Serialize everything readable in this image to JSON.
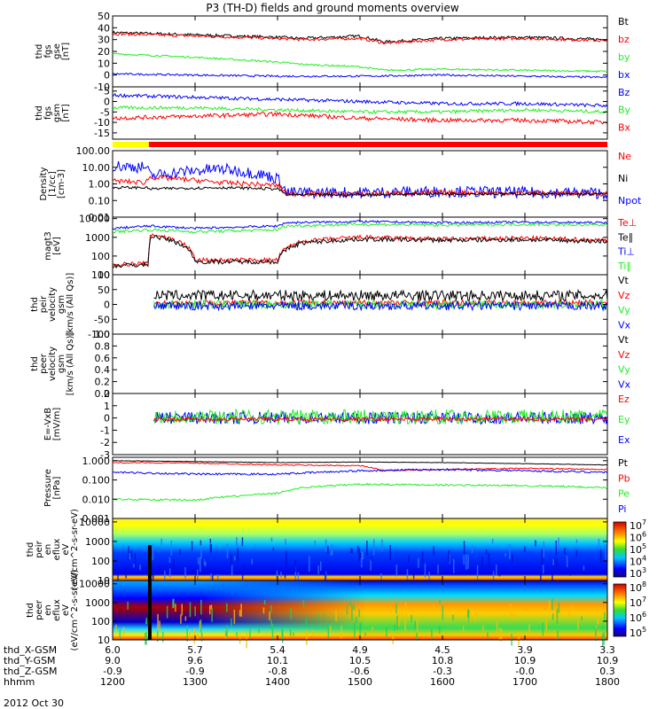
{
  "title": "P3 (TH-D) fields and ground moments overview",
  "date_label": "2012 Oct 30",
  "colors": {
    "black": "#000000",
    "red": "#ff0000",
    "green": "#22ee22",
    "blue": "#0000ff",
    "yellow": "#ffff00",
    "orange": "#ff8800"
  },
  "status_bar": {
    "segments": [
      {
        "from_hhmm": 1200,
        "to_hhmm": 1244,
        "color": "#ffff00"
      },
      {
        "from_hhmm": 1244,
        "to_hhmm": 1800,
        "color": "#ff0000"
      }
    ]
  },
  "orbit_table": {
    "row_labels": [
      "thd_X-GSM",
      "thd_Y-GSM",
      "thd_Z-GSM",
      "hhmm"
    ],
    "columns": [
      [
        "6.0",
        "9.0",
        "-0.9",
        "1200"
      ],
      [
        "5.7",
        "9.6",
        "-0.9",
        "1300"
      ],
      [
        "5.4",
        "10.1",
        "-0.8",
        "1400"
      ],
      [
        "4.9",
        "10.5",
        "-0.6",
        "1500"
      ],
      [
        "4.5",
        "10.8",
        "-0.3",
        "1600"
      ],
      [
        "3.9",
        "10.9",
        "-0.0",
        "1700"
      ],
      [
        "3.3",
        "10.9",
        "0.3",
        "1800"
      ]
    ]
  },
  "chart_data": [
    {
      "type": "line",
      "ylabel": [
        "thd",
        "fgs",
        "gse",
        "[nT]"
      ],
      "ylim": [
        -10,
        50
      ],
      "yticks": [
        "-10",
        "0",
        "10",
        "20",
        "30",
        "40",
        "50"
      ],
      "legend": [
        "Bt",
        "bz",
        "by",
        "bx"
      ],
      "series": [
        {
          "name": "Bt",
          "color": "#000000",
          "x": [
            1200,
            1300,
            1400,
            1430,
            1500,
            1530,
            1600,
            1700,
            1800
          ],
          "values": [
            36,
            34,
            32,
            31,
            33,
            28,
            31,
            32,
            30
          ]
        },
        {
          "name": "bz",
          "color": "#ff0000",
          "x": [
            1200,
            1300,
            1400,
            1430,
            1500,
            1530,
            1600,
            1700,
            1800
          ],
          "values": [
            35,
            33,
            31,
            30,
            31,
            27,
            30,
            31,
            29
          ]
        },
        {
          "name": "by",
          "color": "#22ee22",
          "x": [
            1200,
            1300,
            1400,
            1430,
            1500,
            1530,
            1600,
            1700,
            1800
          ],
          "values": [
            18,
            15,
            11,
            9,
            7,
            4,
            5,
            4,
            3
          ]
        },
        {
          "name": "bx",
          "color": "#0000ff",
          "x": [
            1200,
            1300,
            1400,
            1500,
            1600,
            1700,
            1800
          ],
          "values": [
            1,
            0,
            -1,
            -1,
            0,
            -1,
            -2
          ]
        }
      ]
    },
    {
      "type": "line",
      "ylabel": [
        "thd",
        "fgs",
        "gsm",
        "[nT]"
      ],
      "ylim": [
        -18,
        7
      ],
      "yticks": [
        "-15",
        "-10",
        "-5",
        "0",
        "5"
      ],
      "legend": [
        "Bz",
        "By",
        "Bx"
      ],
      "series": [
        {
          "name": "Bz",
          "color": "#0000ff",
          "x": [
            1200,
            1300,
            1400,
            1500,
            1600,
            1700,
            1800
          ],
          "values": [
            3,
            2,
            1,
            0,
            -1,
            -1,
            -2
          ]
        },
        {
          "name": "By",
          "color": "#22ee22",
          "x": [
            1200,
            1300,
            1400,
            1500,
            1600,
            1700,
            1800
          ],
          "values": [
            -3,
            -3,
            -4,
            -5,
            -5,
            -4,
            -5
          ]
        },
        {
          "name": "Bx",
          "color": "#ff0000",
          "x": [
            1200,
            1300,
            1400,
            1500,
            1600,
            1700,
            1800
          ],
          "values": [
            -8,
            -7,
            -6,
            -8,
            -9,
            -9,
            -10
          ]
        }
      ]
    },
    {
      "type": "line",
      "ylabel": [
        "Density",
        "[1/cc]",
        "[cm-3]"
      ],
      "yscale": "log",
      "ylim": [
        0.01,
        100
      ],
      "yticks": [
        "0.01",
        "0.10",
        "1.00",
        "10.00",
        "100.00"
      ],
      "legend": [
        "Ne",
        "Ni",
        "Npot"
      ],
      "series": [
        {
          "name": "Npot",
          "color": "#0000ff",
          "x": [
            1200,
            1240,
            1245,
            1330,
            1400,
            1410,
            1500,
            1600,
            1700,
            1800
          ],
          "values": [
            12,
            10,
            3,
            8,
            2,
            0.3,
            0.3,
            0.35,
            0.3,
            0.28
          ]
        },
        {
          "name": "Ne",
          "color": "#ff0000",
          "x": [
            1200,
            1240,
            1245,
            1330,
            1400,
            1410,
            1500,
            1600,
            1700,
            1800
          ],
          "values": [
            1.5,
            1.2,
            2.5,
            1.2,
            0.8,
            0.25,
            0.25,
            0.3,
            0.28,
            0.26
          ]
        },
        {
          "name": "Ni",
          "color": "#000000",
          "x": [
            1200,
            1240,
            1245,
            1330,
            1400,
            1410,
            1500,
            1600,
            1700,
            1800
          ],
          "values": [
            0.6,
            0.6,
            0.5,
            0.6,
            0.5,
            0.22,
            0.22,
            0.26,
            0.25,
            0.24
          ]
        }
      ]
    },
    {
      "type": "line",
      "ylabel": [
        "magt3",
        "[eV]"
      ],
      "yscale": "log",
      "ylim": [
        10,
        12000
      ],
      "yticks": [
        "10",
        "100",
        "1000",
        "10000"
      ],
      "legend": [
        "Te⊥",
        "Te∥",
        "Ti⊥",
        "Ti∥"
      ],
      "series": [
        {
          "name": "Ti⊥",
          "color": "#0000ff",
          "x": [
            1200,
            1245,
            1300,
            1400,
            1410,
            1500,
            1600,
            1700,
            1800
          ],
          "values": [
            3000,
            4000,
            3000,
            4000,
            6000,
            7000,
            6000,
            6500,
            6000
          ]
        },
        {
          "name": "Ti∥",
          "color": "#22ee22",
          "x": [
            1200,
            1245,
            1300,
            1400,
            1410,
            1500,
            1600,
            1700,
            1800
          ],
          "values": [
            2000,
            2500,
            2000,
            2500,
            4000,
            5000,
            4500,
            5000,
            4500
          ]
        },
        {
          "name": "Te⊥",
          "color": "#ff0000",
          "x": [
            1200,
            1244,
            1246,
            1300,
            1400,
            1430,
            1500,
            1600,
            1700,
            1800
          ],
          "values": [
            35,
            40,
            1500,
            60,
            60,
            600,
            1000,
            800,
            900,
            700
          ]
        },
        {
          "name": "Te∥",
          "color": "#000000",
          "x": [
            1200,
            1244,
            1246,
            1300,
            1400,
            1430,
            1500,
            1600,
            1700,
            1800
          ],
          "values": [
            30,
            35,
            1200,
            50,
            50,
            500,
            800,
            700,
            750,
            600
          ]
        }
      ]
    },
    {
      "type": "line",
      "ylabel": [
        "thd",
        "peir",
        "velocity",
        "gsm",
        "[km/s (All Qs)]"
      ],
      "ylim": [
        -100,
        100
      ],
      "yticks": [
        "-100",
        "-50",
        "0",
        "50",
        "100"
      ],
      "legend": [
        "Vt",
        "Vz",
        "Vy",
        "Vx"
      ],
      "x_start": 1250,
      "series": [
        {
          "name": "Vt",
          "color": "#000000",
          "x": [
            1250,
            1800
          ],
          "values": [
            30,
            30
          ]
        },
        {
          "name": "Vz",
          "color": "#ff0000",
          "x": [
            1250,
            1800
          ],
          "values": [
            5,
            5
          ]
        },
        {
          "name": "Vy",
          "color": "#22ee22",
          "x": [
            1250,
            1800
          ],
          "values": [
            0,
            0
          ]
        },
        {
          "name": "Vx",
          "color": "#0000ff",
          "x": [
            1250,
            1800
          ],
          "values": [
            -5,
            -5
          ]
        }
      ]
    },
    {
      "type": "line",
      "ylabel": [
        "thd",
        "peer",
        "velocity",
        "gsm",
        "[km/s (All Qs)]"
      ],
      "ylim": [
        0,
        1
      ],
      "yticks": [
        "0.0",
        "0.2",
        "0.4",
        "0.6",
        "0.8",
        "1.0"
      ],
      "legend": [
        "Vt",
        "Vz",
        "Vy",
        "Vx"
      ],
      "series": []
    },
    {
      "type": "line",
      "ylabel": [
        "E=-VxB",
        "[mV/m]"
      ],
      "ylim": [
        -3,
        2
      ],
      "yticks": [
        "-3",
        "-2",
        "-1",
        "0",
        "1",
        "2"
      ],
      "legend": [
        "Ez",
        "Ey",
        "Ex"
      ],
      "x_start": 1250,
      "series": [
        {
          "name": "Ex",
          "color": "#0000ff",
          "x": [
            1250,
            1800
          ],
          "values": [
            0,
            0
          ]
        },
        {
          "name": "Ey",
          "color": "#22ee22",
          "x": [
            1250,
            1800
          ],
          "values": [
            0.1,
            0.1
          ]
        },
        {
          "name": "Ez",
          "color": "#ff0000",
          "x": [
            1250,
            1800
          ],
          "values": [
            -0.1,
            -0.1
          ]
        }
      ]
    },
    {
      "type": "line",
      "ylabel": [
        "Pressure",
        "[nPa]"
      ],
      "yscale": "log",
      "ylim": [
        0.001,
        1.5
      ],
      "yticks": [
        "0.001",
        "0.010",
        "0.100",
        "1.000"
      ],
      "legend": [
        "Pt",
        "Pb",
        "Pe",
        "Pi"
      ],
      "series": [
        {
          "name": "Pt",
          "color": "#000000",
          "x": [
            1200,
            1300,
            1400,
            1500,
            1600,
            1700,
            1800
          ],
          "values": [
            1.0,
            0.9,
            0.8,
            0.85,
            0.8,
            0.7,
            0.6
          ]
        },
        {
          "name": "Pb",
          "color": "#ff0000",
          "x": [
            1200,
            1300,
            1400,
            1500,
            1530,
            1600,
            1700,
            1800
          ],
          "values": [
            0.8,
            0.75,
            0.6,
            0.55,
            0.3,
            0.35,
            0.4,
            0.35
          ]
        },
        {
          "name": "Pi",
          "color": "#0000ff",
          "x": [
            1200,
            1300,
            1400,
            1500,
            1600,
            1700,
            1800
          ],
          "values": [
            0.25,
            0.2,
            0.2,
            0.3,
            0.35,
            0.3,
            0.25
          ]
        },
        {
          "name": "Pe",
          "color": "#22ee22",
          "x": [
            1200,
            1300,
            1400,
            1430,
            1500,
            1600,
            1700,
            1800
          ],
          "values": [
            0.01,
            0.009,
            0.02,
            0.04,
            0.06,
            0.055,
            0.05,
            0.04
          ]
        }
      ]
    },
    {
      "type": "heatmap",
      "ylabel": [
        "thd",
        "peir",
        "en",
        "eflux",
        "eV",
        "(eV/cm^2-s-sr-eV)"
      ],
      "yscale": "log",
      "ylim": [
        10,
        15000
      ],
      "yticks": [
        "10",
        "100",
        "1000",
        "10000"
      ],
      "colorbar_labels": [
        "10^3",
        "10^4",
        "10^5",
        "10^6",
        "10^7"
      ]
    },
    {
      "type": "heatmap",
      "ylabel": [
        "thd",
        "peer",
        "en",
        "eflux",
        "eV",
        "(eV/cm^2-s-sr-eV)"
      ],
      "yscale": "log",
      "ylim": [
        10,
        15000
      ],
      "yticks": [
        "10",
        "100",
        "1000",
        "10000"
      ],
      "colorbar_labels": [
        "10^5",
        "10^6",
        "10^7",
        "10^8"
      ]
    }
  ]
}
